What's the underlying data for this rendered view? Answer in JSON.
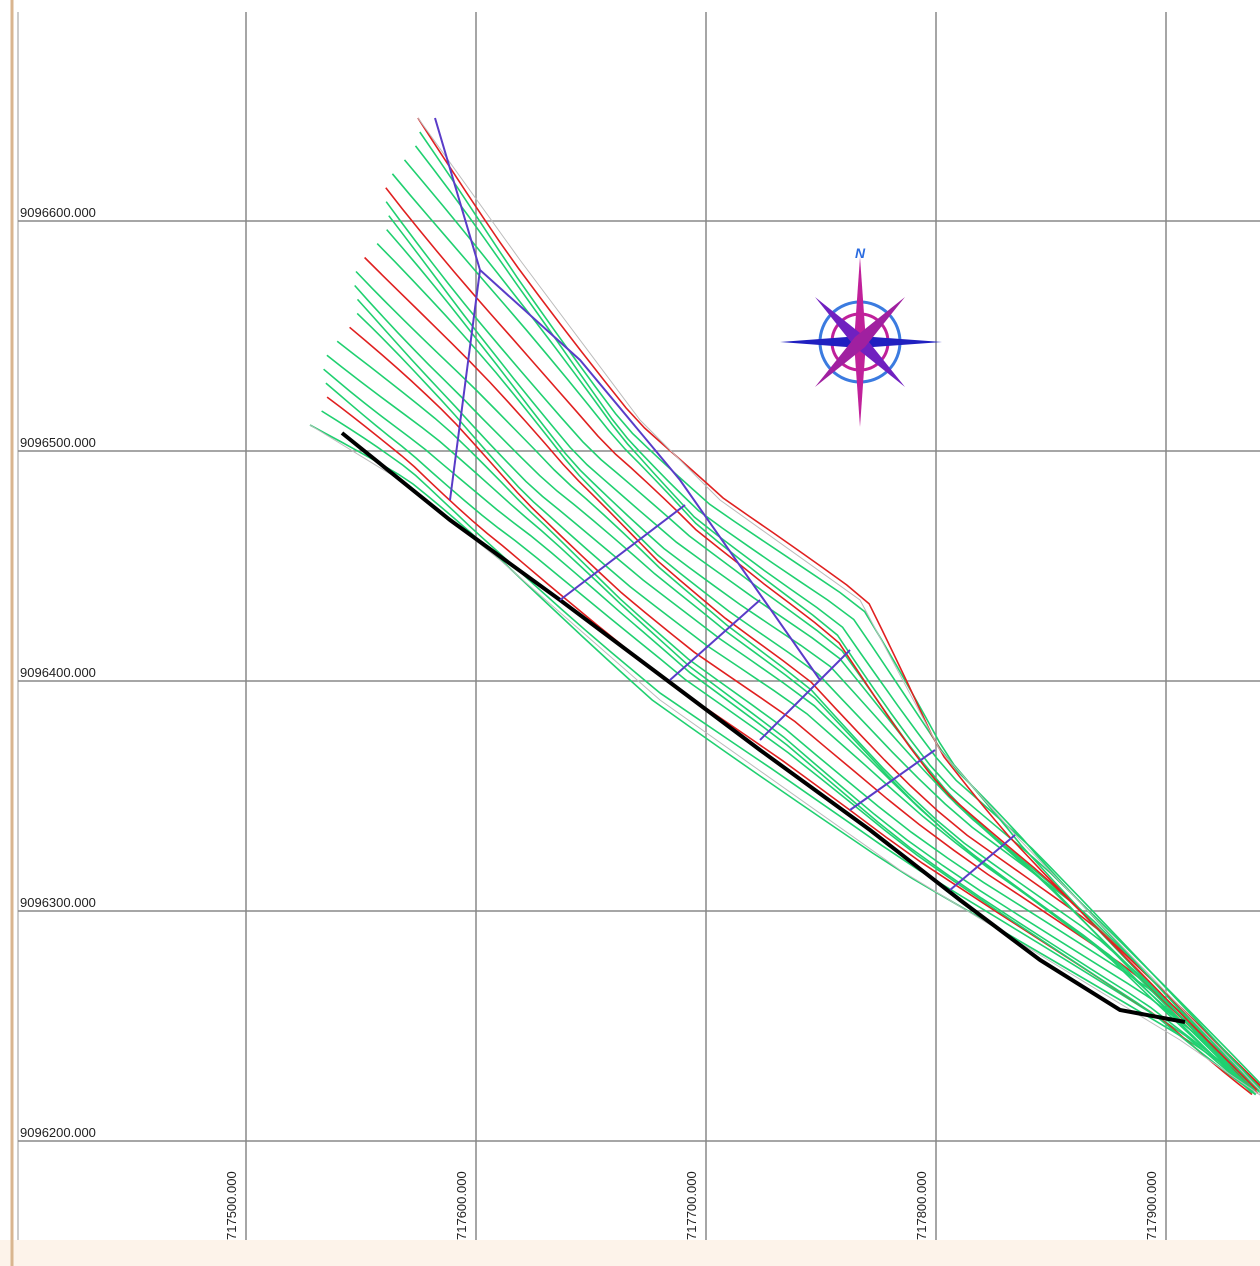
{
  "compass": {
    "label": "N"
  },
  "grid": {
    "easting": [
      {
        "value": 717500,
        "label": "717500.000"
      },
      {
        "value": 717600,
        "label": "717600.000"
      },
      {
        "value": 717700,
        "label": "717700.000"
      },
      {
        "value": 717800,
        "label": "717800.000"
      },
      {
        "value": 717900,
        "label": "717900.000"
      }
    ],
    "northing": [
      {
        "value": 9096600,
        "label": "9096600.000"
      },
      {
        "value": 9096500,
        "label": "9096500.000"
      },
      {
        "value": 9096400,
        "label": "9096400.000"
      },
      {
        "value": 9096300,
        "label": "9096300.000"
      },
      {
        "value": 9096200,
        "label": "9096200.000"
      }
    ]
  }
}
